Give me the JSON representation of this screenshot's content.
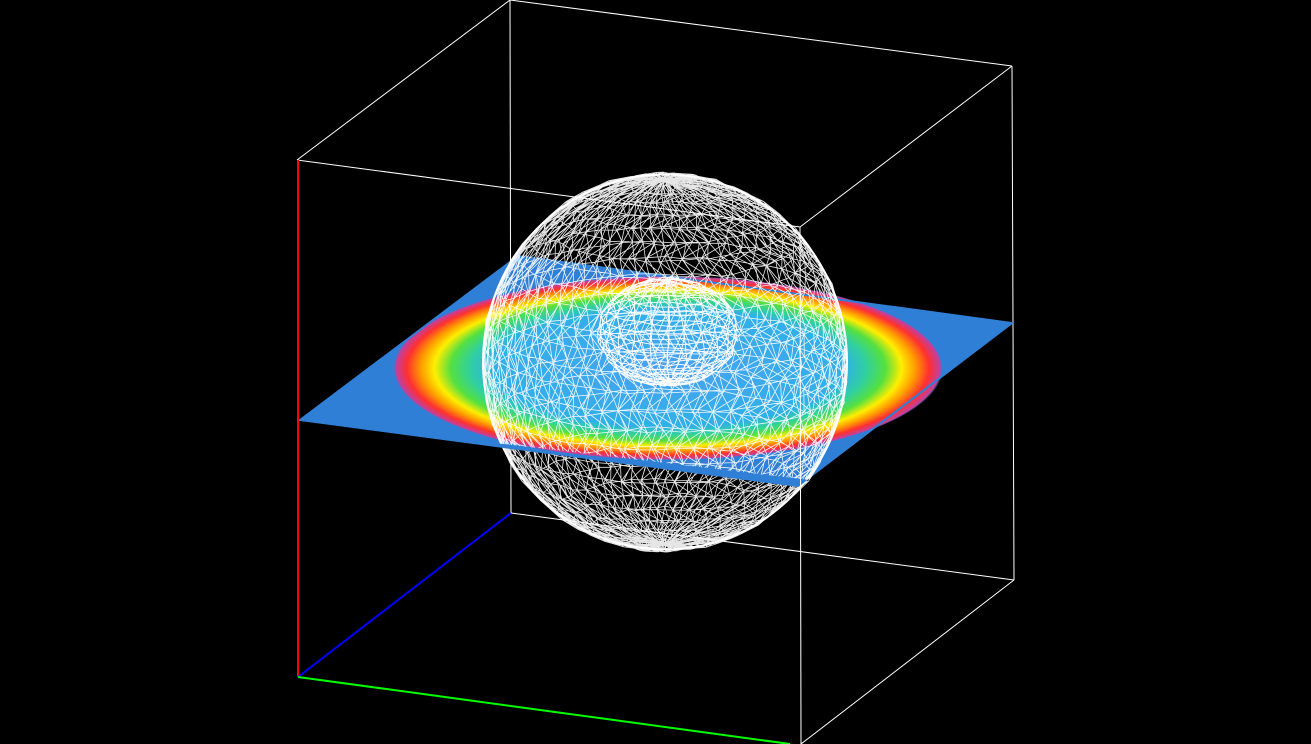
{
  "viewer": {
    "background": "#000000",
    "bounding_box_color": "#ffffff",
    "axes": {
      "x_color": "#00ff00",
      "y_color": "#0000ff",
      "z_color": "#ff0000"
    },
    "slice_plane": {
      "base_color": "#2f7fd6",
      "colormap": [
        "#2f7fd6",
        "#c040a0",
        "#ff3030",
        "#ff9900",
        "#ffee00",
        "#55e040",
        "#30d0a0",
        "#30b0e8",
        "#4aa0f0"
      ]
    },
    "sphere_mesh": {
      "color": "#ffffff",
      "style": "wireframe"
    },
    "inner_mesh": {
      "color": "#ffffff",
      "style": "wireframe"
    }
  }
}
